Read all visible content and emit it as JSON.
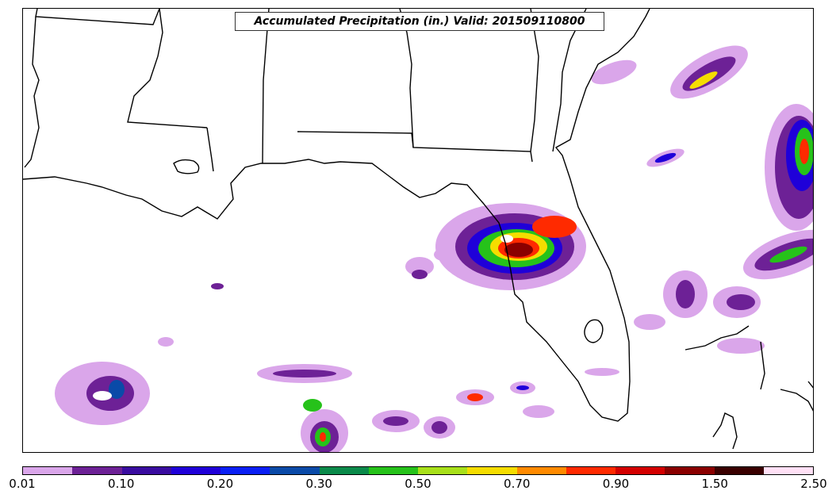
{
  "title": "Accumulated Precipitation (in.) Valid: 201509110800",
  "colorbar": {
    "colors": [
      "#daa6ea",
      "#6d2196",
      "#3a0ca0",
      "#1f00d9",
      "#0a1ff5",
      "#0a4aa8",
      "#0a8a4a",
      "#26c21a",
      "#a8e01a",
      "#f5dd00",
      "#ff8a00",
      "#ff2a00",
      "#d40000",
      "#8a0000",
      "#3a0000",
      "#ffe0f5"
    ],
    "tick_labels": [
      "0.01",
      "0.10",
      "0.20",
      "0.30",
      "0.50",
      "0.70",
      "0.90",
      "1.50",
      "2.50"
    ]
  }
}
